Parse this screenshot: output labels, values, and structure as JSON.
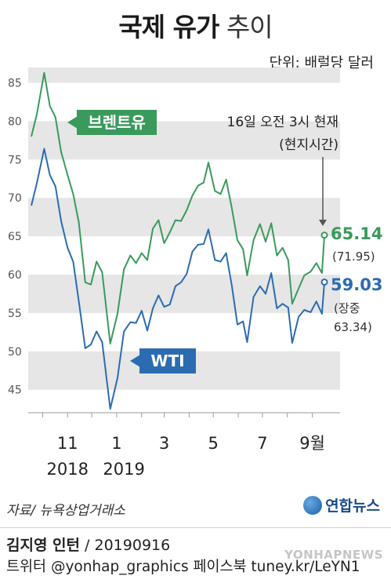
{
  "title_strong": "국제 유가",
  "title_light": "추이",
  "unit": "단위: 배럴당 달러",
  "source": "자료/ 뉴욕상업거래소",
  "logo": "연합뉴스",
  "credit_name": "김지영 인턴",
  "credit_date": " / 20190916",
  "social": "트위터 @yonhap_graphics 페이스북 tuney.kr/LeYN1",
  "watermark": "YONHAPNEWS",
  "colors": {
    "brent": "#3a9a5c",
    "wti": "#2b6cb0",
    "band": "#e6e6e6"
  },
  "chart_data": {
    "type": "line",
    "ylim": [
      42,
      87
    ],
    "y_ticks": [
      45,
      50,
      55,
      60,
      65,
      70,
      75,
      80,
      85
    ],
    "x_month_labels": [
      "11",
      "1",
      "3",
      "5",
      "7",
      "9월"
    ],
    "x_year_labels": [
      "2018",
      "2019"
    ],
    "note": [
      "16일 오전 3시 현재",
      "(현지시간)"
    ],
    "series": [
      {
        "name": "브렌트유",
        "last_value": "65.14",
        "last_note": "(71.95)",
        "x": [
          "2018-09-17",
          "2018-09-24",
          "2018-10-03",
          "2018-10-10",
          "2018-10-17",
          "2018-10-24",
          "2018-11-01",
          "2018-11-08",
          "2018-11-15",
          "2018-11-23",
          "2018-11-30",
          "2018-12-07",
          "2018-12-14",
          "2018-12-24",
          "2019-01-02",
          "2019-01-10",
          "2019-01-18",
          "2019-01-25",
          "2019-02-01",
          "2019-02-08",
          "2019-02-15",
          "2019-02-22",
          "2019-03-01",
          "2019-03-08",
          "2019-03-15",
          "2019-03-22",
          "2019-03-29",
          "2019-04-05",
          "2019-04-12",
          "2019-04-19",
          "2019-04-25",
          "2019-05-03",
          "2019-05-10",
          "2019-05-17",
          "2019-05-24",
          "2019-05-31",
          "2019-06-07",
          "2019-06-12",
          "2019-06-20",
          "2019-06-28",
          "2019-07-05",
          "2019-07-12",
          "2019-07-19",
          "2019-07-26",
          "2019-08-02",
          "2019-08-07",
          "2019-08-15",
          "2019-08-22",
          "2019-08-30",
          "2019-09-06",
          "2019-09-13",
          "2019-09-16"
        ],
        "values": [
          78.0,
          81.0,
          86.3,
          82.0,
          80.5,
          76.0,
          73.0,
          70.5,
          66.8,
          59.0,
          58.7,
          61.7,
          60.3,
          51.0,
          54.9,
          60.7,
          62.5,
          61.5,
          62.8,
          61.9,
          66.0,
          67.1,
          64.1,
          65.5,
          67.1,
          67.0,
          68.4,
          70.3,
          71.6,
          72.0,
          74.6,
          70.9,
          70.5,
          72.4,
          68.7,
          64.5,
          63.3,
          59.9,
          64.5,
          66.6,
          64.3,
          66.7,
          62.5,
          63.5,
          61.9,
          56.2,
          58.2,
          59.9,
          60.4,
          61.5,
          60.2,
          65.14
        ]
      },
      {
        "name": "WTI",
        "last_value": "59.03",
        "last_note": [
          "(장중",
          "63.34)"
        ],
        "x": [
          "2018-09-17",
          "2018-09-24",
          "2018-10-03",
          "2018-10-10",
          "2018-10-17",
          "2018-10-24",
          "2018-11-01",
          "2018-11-08",
          "2018-11-15",
          "2018-11-23",
          "2018-11-30",
          "2018-12-07",
          "2018-12-14",
          "2018-12-24",
          "2019-01-02",
          "2019-01-10",
          "2019-01-18",
          "2019-01-25",
          "2019-02-01",
          "2019-02-08",
          "2019-02-15",
          "2019-02-22",
          "2019-03-01",
          "2019-03-08",
          "2019-03-15",
          "2019-03-22",
          "2019-03-29",
          "2019-04-05",
          "2019-04-12",
          "2019-04-19",
          "2019-04-25",
          "2019-05-03",
          "2019-05-10",
          "2019-05-17",
          "2019-05-24",
          "2019-05-31",
          "2019-06-07",
          "2019-06-12",
          "2019-06-20",
          "2019-06-28",
          "2019-07-05",
          "2019-07-12",
          "2019-07-19",
          "2019-07-26",
          "2019-08-02",
          "2019-08-07",
          "2019-08-15",
          "2019-08-22",
          "2019-08-30",
          "2019-09-06",
          "2019-09-13",
          "2019-09-16"
        ],
        "values": [
          69.0,
          72.0,
          76.4,
          73.0,
          71.5,
          67.0,
          63.5,
          61.7,
          56.5,
          50.4,
          50.9,
          52.6,
          51.2,
          42.5,
          46.5,
          52.6,
          53.8,
          53.7,
          55.3,
          52.7,
          55.6,
          57.3,
          55.8,
          56.1,
          58.5,
          59.0,
          60.1,
          63.0,
          63.9,
          64.0,
          65.9,
          61.9,
          61.7,
          62.8,
          58.6,
          53.5,
          53.9,
          51.2,
          57.1,
          58.5,
          57.5,
          60.2,
          55.6,
          56.2,
          55.7,
          51.1,
          54.5,
          55.4,
          55.1,
          56.5,
          54.9,
          59.03
        ]
      }
    ]
  }
}
